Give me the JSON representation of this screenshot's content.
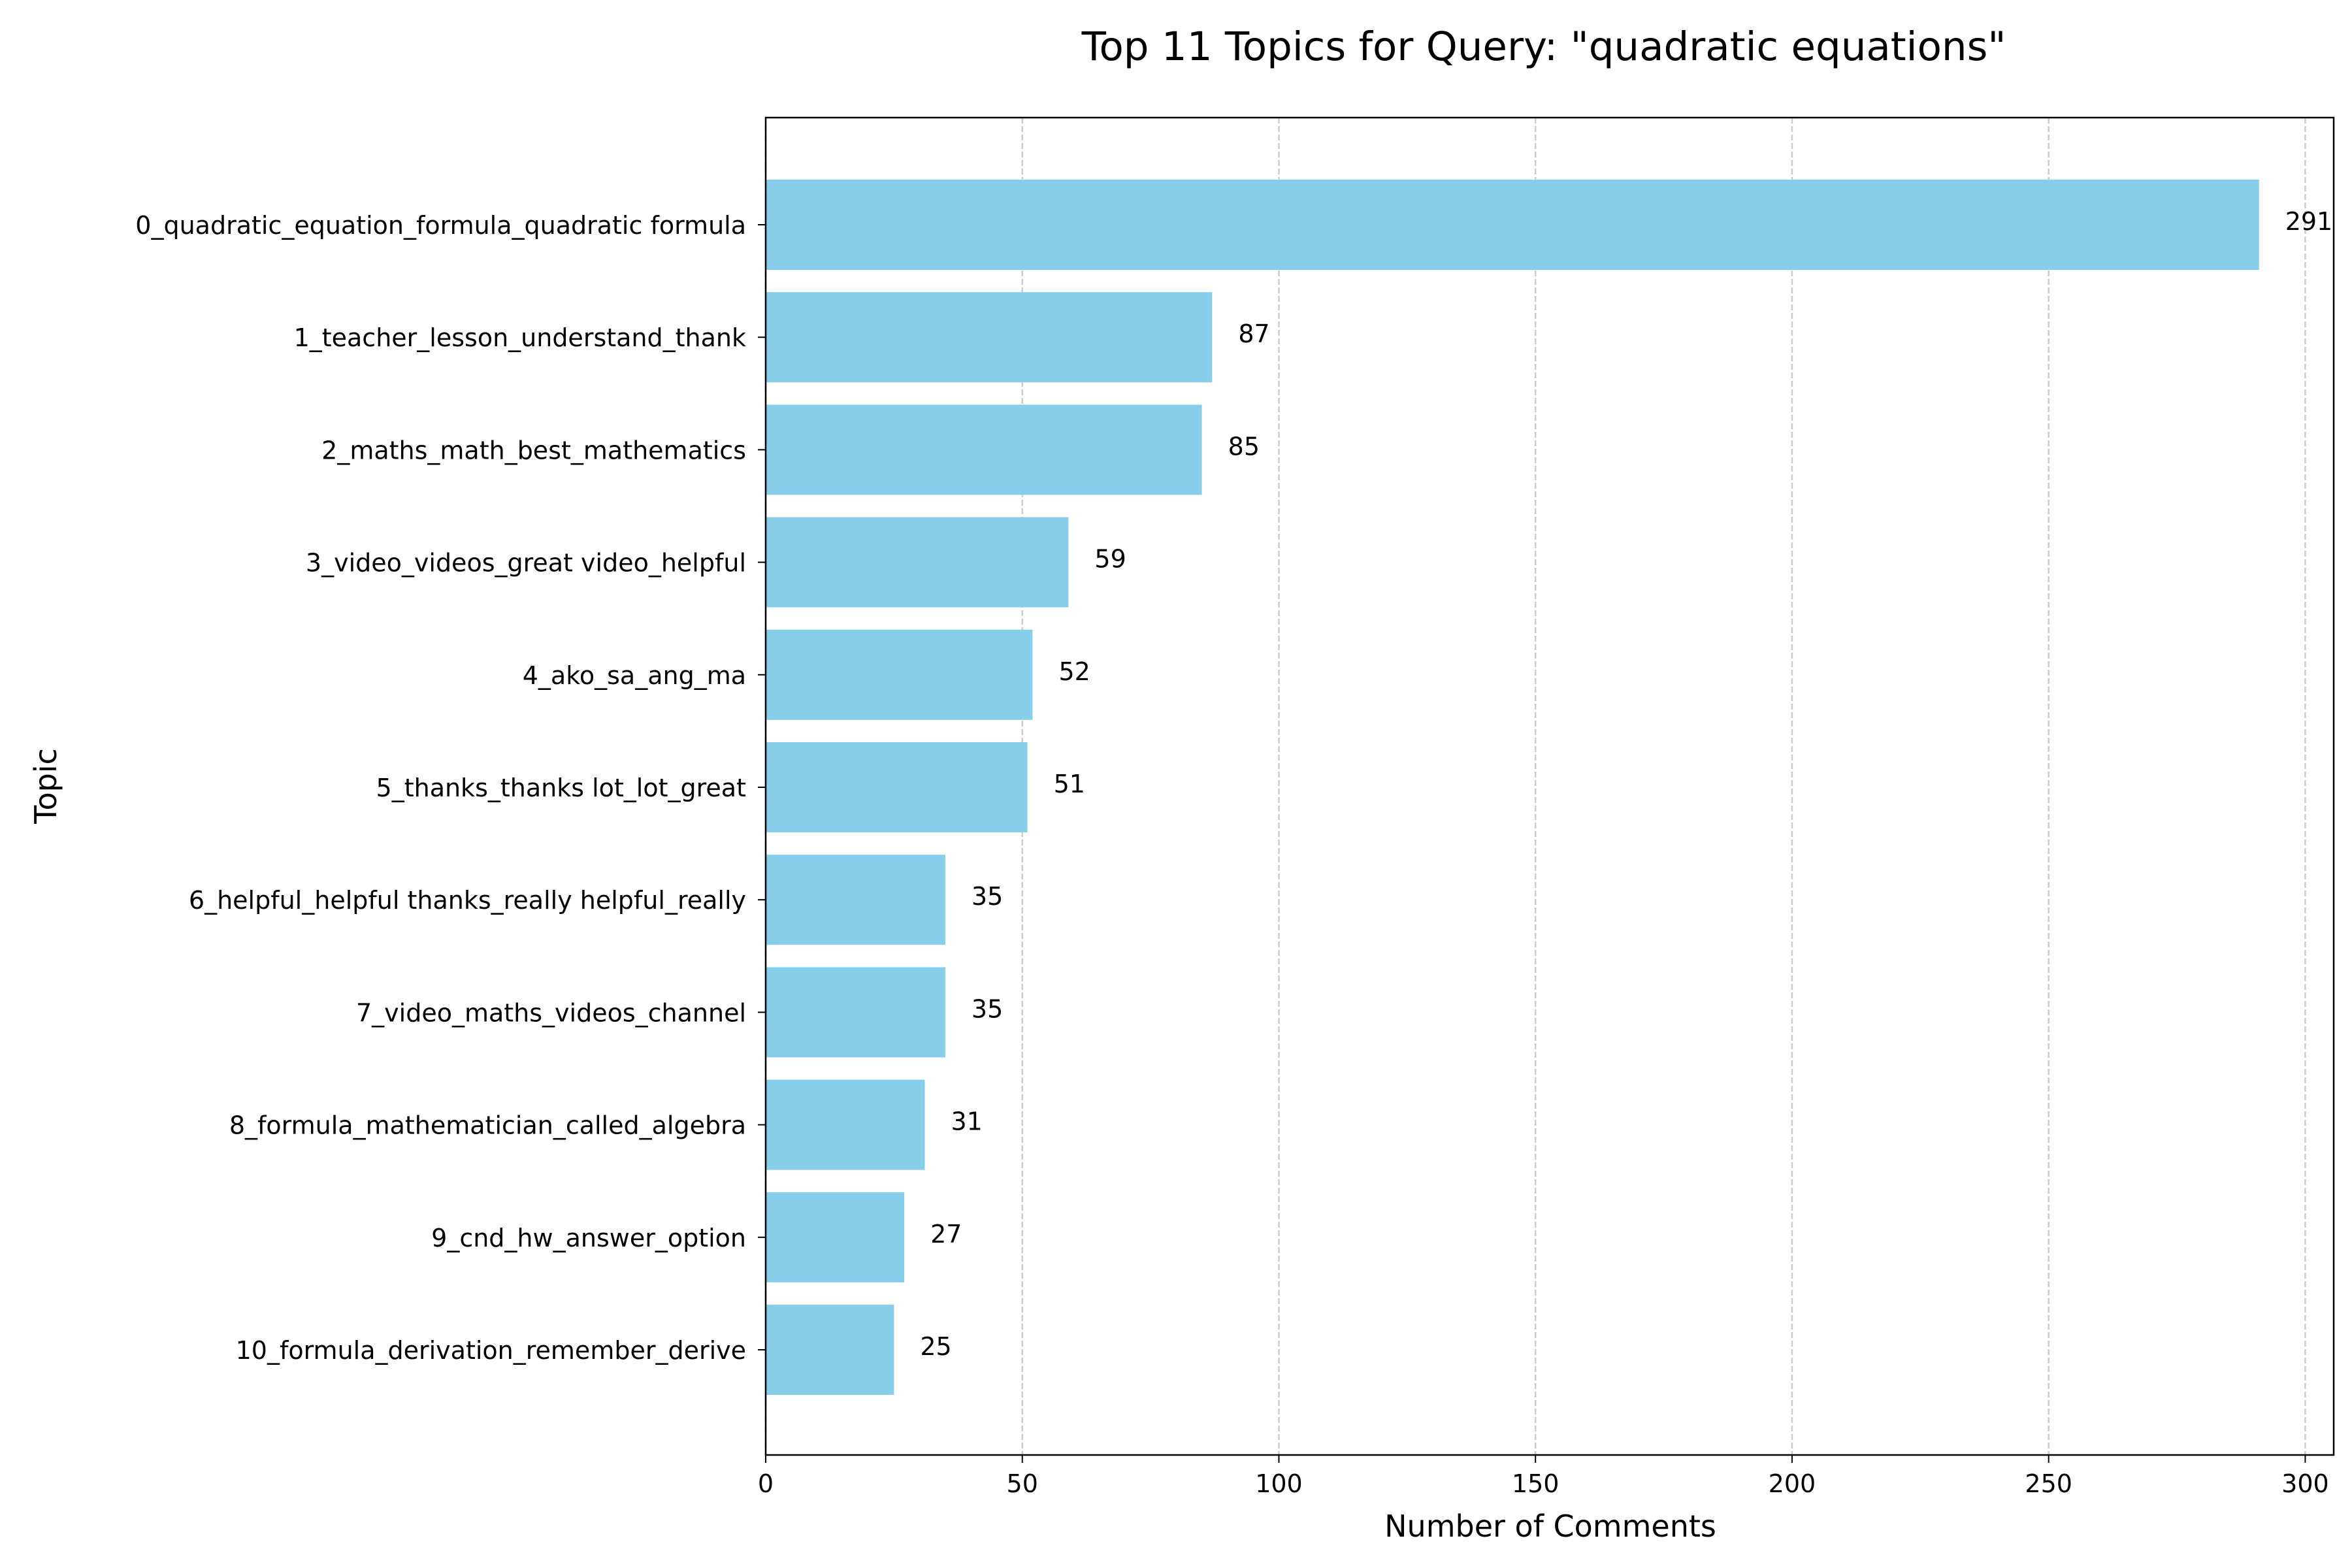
{
  "chart_data": {
    "type": "bar",
    "orientation": "horizontal",
    "title": "Top 11 Topics for Query: \"quadratic equations\"",
    "xlabel": "Number of Comments",
    "ylabel": "Topic",
    "categories": [
      "0_quadratic_equation_formula_quadratic formula",
      "1_teacher_lesson_understand_thank",
      "2_maths_math_best_mathematics",
      "3_video_videos_great video_helpful",
      "4_ako_sa_ang_ma",
      "5_thanks_thanks lot_lot_great",
      "6_helpful_helpful thanks_really helpful_really",
      "7_video_maths_videos_channel",
      "8_formula_mathematician_called_algebra",
      "9_cnd_hw_answer_option",
      "10_formula_derivation_remember_derive"
    ],
    "values": [
      291,
      87,
      85,
      59,
      52,
      51,
      35,
      35,
      31,
      27,
      25
    ],
    "data_labels": [
      "291",
      "87",
      "85",
      "59",
      "52",
      "51",
      "35",
      "35",
      "31",
      "27",
      "25"
    ],
    "xlim": [
      0,
      305.55
    ],
    "xticks": [
      0,
      50,
      100,
      150,
      200,
      250,
      300
    ],
    "xtick_labels": [
      "0",
      "50",
      "100",
      "150",
      "200",
      "250",
      "300"
    ],
    "grid": "x-dashed",
    "bar_color": "#87ceeb",
    "grid_color": "#cccccc"
  }
}
